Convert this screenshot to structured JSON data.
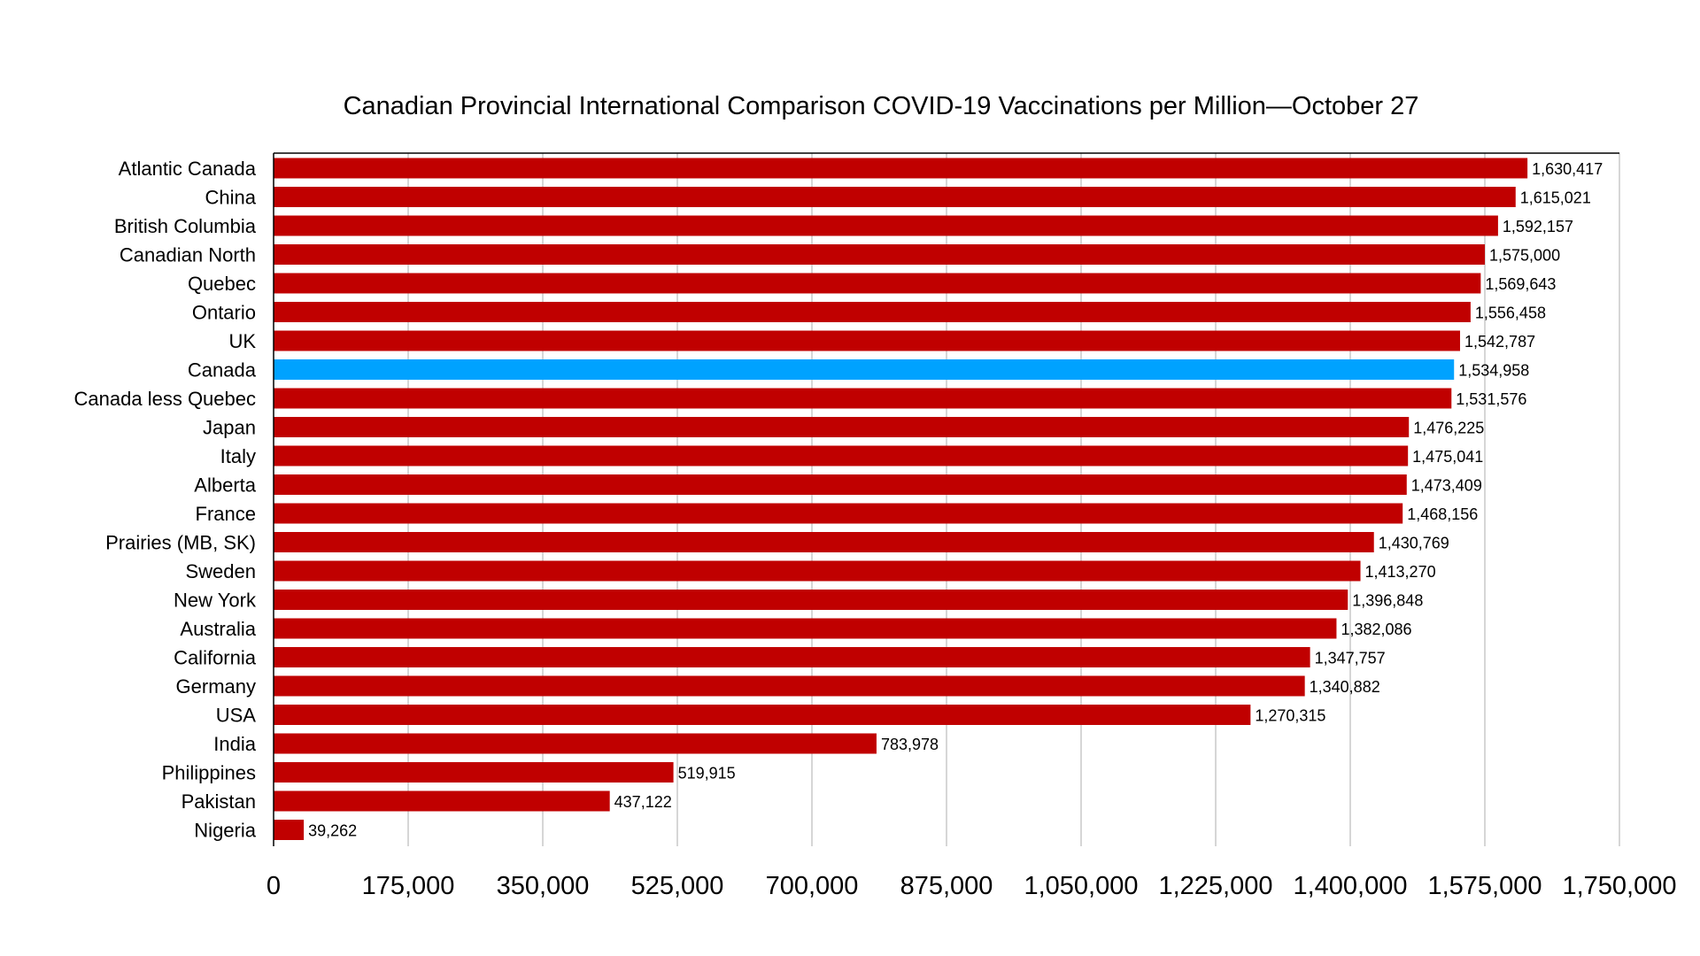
{
  "chart_data": {
    "type": "bar",
    "orientation": "horizontal",
    "title": "Canadian Provincial International Comparison COVID-19 Vaccinations per Million—October 27",
    "xlabel": "",
    "ylabel": "",
    "xlim": [
      0,
      1750000
    ],
    "x_ticks": [
      0,
      175000,
      350000,
      525000,
      700000,
      875000,
      1050000,
      1225000,
      1400000,
      1575000,
      1750000
    ],
    "x_tick_labels": [
      "0",
      "175,000",
      "350,000",
      "525,000",
      "700,000",
      "875,000",
      "1,050,000",
      "1,225,000",
      "1,400,000",
      "1,575,000",
      "1,750,000"
    ],
    "grid": "vertical",
    "legend": "none",
    "colors": {
      "default": "#c00000",
      "highlight": "#00a2ff",
      "gridline": "#bbbbbb",
      "axis": "#000000"
    },
    "highlight_category": "Canada",
    "categories": [
      "Atlantic Canada",
      "China",
      "British Columbia",
      "Canadian North",
      "Quebec",
      "Ontario",
      "UK",
      "Canada",
      "Canada less Quebec",
      "Japan",
      "Italy",
      "Alberta",
      "France",
      "Prairies (MB, SK)",
      "Sweden",
      "New York",
      "Australia",
      "California",
      "Germany",
      "USA",
      "India",
      "Philippines",
      "Pakistan",
      "Nigeria"
    ],
    "values": [
      1630417,
      1615021,
      1592157,
      1575000,
      1569643,
      1556458,
      1542787,
      1534958,
      1531576,
      1476225,
      1475041,
      1473409,
      1468156,
      1430769,
      1413270,
      1396848,
      1382086,
      1347757,
      1340882,
      1270315,
      783978,
      519915,
      437122,
      39262
    ],
    "value_labels": [
      "1,630,417",
      "1,615,021",
      "1,592,157",
      "1,575,000",
      "1,569,643",
      "1,556,458",
      "1,542,787",
      "1,534,958",
      "1,531,576",
      "1,476,225",
      "1,475,041",
      "1,473,409",
      "1,468,156",
      "1,430,769",
      "1,413,270",
      "1,396,848",
      "1,382,086",
      "1,347,757",
      "1,340,882",
      "1,270,315",
      "783,978",
      "519,915",
      "437,122",
      "39,262"
    ]
  }
}
